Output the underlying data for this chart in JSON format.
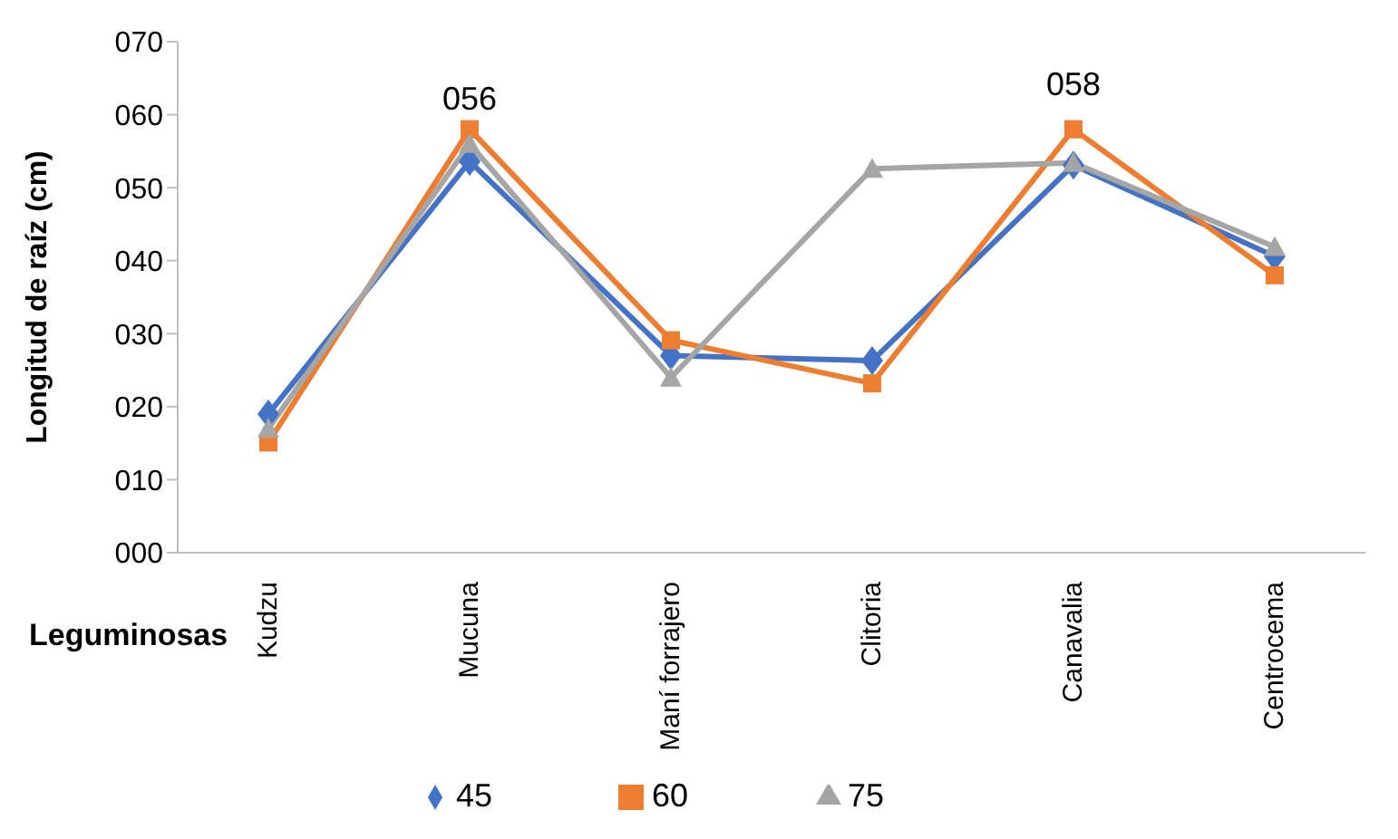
{
  "chart_data": {
    "type": "line",
    "xlabel": "Leguminosas",
    "ylabel": "Longitud de raíz (cm)",
    "categories": [
      "Kudzu",
      "Mucuna",
      "Maní forrajero",
      "Clitoria",
      "Canavalia",
      "Centrocema"
    ],
    "series": [
      {
        "name": "45",
        "color": "#4472c4",
        "marker": "diamond",
        "values": [
          19,
          53.6,
          27,
          26.3,
          53.1,
          40.6
        ]
      },
      {
        "name": "60",
        "color": "#ed7d31",
        "marker": "square",
        "values": [
          15.1,
          58,
          29.1,
          23.2,
          58,
          38
        ]
      },
      {
        "name": "75",
        "color": "#a5a5a5",
        "marker": "triangle",
        "values": [
          17,
          56,
          24,
          52.6,
          53.4,
          41.9
        ]
      }
    ],
    "ylim": [
      0,
      70
    ],
    "yticks": [
      {
        "value": 0,
        "label": "000"
      },
      {
        "value": 10,
        "label": "010"
      },
      {
        "value": 20,
        "label": "020"
      },
      {
        "value": 30,
        "label": "030"
      },
      {
        "value": 40,
        "label": "040"
      },
      {
        "value": 50,
        "label": "050"
      },
      {
        "value": 60,
        "label": "060"
      },
      {
        "value": 70,
        "label": "070"
      }
    ],
    "annotations": [
      {
        "text": "056",
        "x": "Mucuna",
        "y": 56
      },
      {
        "text": "058",
        "x": "Canavalia",
        "y": 58
      }
    ],
    "grid": false,
    "legend": "bottom",
    "line_style": "solid"
  }
}
